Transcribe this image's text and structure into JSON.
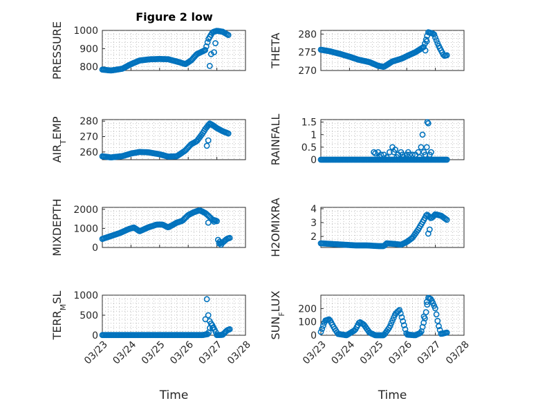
{
  "figure_title": "Figure 2 low",
  "marker_color": "#0072BD",
  "chart_data": [
    {
      "id": "pressure",
      "type": "scatter",
      "title": "Figure 2 low",
      "ylabel": "PRESSURE",
      "ylim": [
        780,
        1000
      ],
      "yticks": [
        "800",
        "900",
        "1000"
      ],
      "xlim": [
        0,
        5
      ],
      "series": [
        {
          "name": "PRESSURE",
          "keypoints": [
            [
              0,
              785
            ],
            [
              0.3,
              780
            ],
            [
              0.7,
              790
            ],
            [
              1.0,
              815
            ],
            [
              1.3,
              835
            ],
            [
              1.7,
              842
            ],
            [
              2.0,
              843
            ],
            [
              2.3,
              842
            ],
            [
              2.7,
              825
            ],
            [
              2.9,
              815
            ],
            [
              3.1,
              835
            ],
            [
              3.3,
              870
            ],
            [
              3.5,
              885
            ],
            [
              3.6,
              893
            ],
            [
              3.7,
              950
            ],
            [
              3.85,
              990
            ],
            [
              4.0,
              998
            ],
            [
              4.2,
              993
            ],
            [
              4.4,
              975
            ]
          ],
          "outliers": [
            [
              3.75,
              805
            ],
            [
              3.8,
              870
            ],
            [
              3.9,
              880
            ],
            [
              3.95,
              930
            ]
          ]
        }
      ]
    },
    {
      "id": "theta",
      "type": "scatter",
      "ylabel": "THETA",
      "ylim": [
        270,
        281
      ],
      "yticks": [
        "270",
        "275",
        "280"
      ],
      "xlim": [
        0,
        5
      ],
      "series": [
        {
          "name": "THETA",
          "keypoints": [
            [
              0,
              275.7
            ],
            [
              0.3,
              275.3
            ],
            [
              0.7,
              274.5
            ],
            [
              1.0,
              273.8
            ],
            [
              1.3,
              273.0
            ],
            [
              1.7,
              272.3
            ],
            [
              2.0,
              271.3
            ],
            [
              2.2,
              271.0
            ],
            [
              2.5,
              272.5
            ],
            [
              2.8,
              273.2
            ],
            [
              3.1,
              274.3
            ],
            [
              3.3,
              275.0
            ],
            [
              3.5,
              276.0
            ],
            [
              3.6,
              276.5
            ],
            [
              3.75,
              280.5
            ],
            [
              3.85,
              280.3
            ],
            [
              3.95,
              280.0
            ],
            [
              4.1,
              277.0
            ],
            [
              4.3,
              274.0
            ],
            [
              4.4,
              274.2
            ]
          ],
          "outliers": [
            [
              3.65,
              275.5
            ],
            [
              3.7,
              278.0
            ]
          ]
        }
      ]
    },
    {
      "id": "air_temp",
      "type": "scatter",
      "ylabel": "AIR",
      "ylabel_sub": "T",
      "ylabel_suffix": "EMP",
      "ylim": [
        255,
        281
      ],
      "yticks": [
        "260",
        "270",
        "280"
      ],
      "xlim": [
        0,
        5
      ],
      "series": [
        {
          "name": "AIR_TEMP",
          "keypoints": [
            [
              0,
              257.2
            ],
            [
              0.3,
              256.5
            ],
            [
              0.7,
              257.3
            ],
            [
              1.0,
              259.0
            ],
            [
              1.3,
              260.0
            ],
            [
              1.6,
              259.8
            ],
            [
              2.0,
              258.5
            ],
            [
              2.3,
              257.0
            ],
            [
              2.6,
              257.2
            ],
            [
              2.9,
              261.0
            ],
            [
              3.1,
              265.0
            ],
            [
              3.3,
              267.0
            ],
            [
              3.5,
              272.0
            ],
            [
              3.6,
              275.0
            ],
            [
              3.75,
              278.5
            ],
            [
              3.85,
              277.5
            ],
            [
              4.0,
              275.5
            ],
            [
              4.2,
              273.5
            ],
            [
              4.4,
              272.0
            ]
          ],
          "outliers": [
            [
              3.65,
              264.0
            ],
            [
              3.7,
              267.5
            ]
          ]
        }
      ]
    },
    {
      "id": "rainfall",
      "type": "scatter",
      "ylabel": "RAINFALL",
      "ylim": [
        0,
        1.6
      ],
      "yticks": [
        "0",
        "0.5",
        "1",
        "1.5"
      ],
      "xlim": [
        0,
        5
      ],
      "series": [
        {
          "name": "RAINFALL",
          "keypoints": [
            [
              0,
              0
            ],
            [
              1.8,
              0
            ],
            [
              4.4,
              0
            ]
          ],
          "outliers": [
            [
              1.85,
              0.3
            ],
            [
              1.9,
              0.25
            ],
            [
              2.0,
              0.3
            ],
            [
              2.05,
              0.1
            ],
            [
              2.1,
              0.2
            ],
            [
              2.2,
              0.2
            ],
            [
              2.3,
              0.1
            ],
            [
              2.4,
              0.3
            ],
            [
              2.5,
              0.5
            ],
            [
              2.55,
              0.3
            ],
            [
              2.6,
              0.4
            ],
            [
              2.65,
              0.1
            ],
            [
              2.7,
              0.2
            ],
            [
              2.8,
              0.3
            ],
            [
              2.85,
              0.2
            ],
            [
              2.9,
              0.1
            ],
            [
              3.0,
              0.2
            ],
            [
              3.05,
              0.3
            ],
            [
              3.1,
              0.2
            ],
            [
              3.2,
              0.2
            ],
            [
              3.3,
              0.2
            ],
            [
              3.4,
              0.3
            ],
            [
              3.45,
              0.1
            ],
            [
              3.5,
              0.5
            ],
            [
              3.55,
              1.0
            ],
            [
              3.6,
              0.3
            ],
            [
              3.65,
              0.2
            ],
            [
              3.7,
              0.5
            ],
            [
              3.72,
              1.5
            ],
            [
              3.75,
              1.45
            ],
            [
              3.8,
              0.2
            ],
            [
              3.85,
              0.3
            ]
          ]
        }
      ]
    },
    {
      "id": "mixdepth",
      "type": "scatter",
      "ylabel": "MIXDEPTH",
      "ylim": [
        0,
        2100
      ],
      "yticks": [
        "0",
        "1000",
        "2000"
      ],
      "xlim": [
        0,
        5
      ],
      "series": [
        {
          "name": "MIXDEPTH",
          "keypoints": [
            [
              0,
              450
            ],
            [
              0.3,
              600
            ],
            [
              0.6,
              750
            ],
            [
              0.9,
              950
            ],
            [
              1.1,
              1050
            ],
            [
              1.3,
              850
            ],
            [
              1.6,
              1050
            ],
            [
              1.9,
              1200
            ],
            [
              2.1,
              1200
            ],
            [
              2.3,
              1050
            ],
            [
              2.6,
              1300
            ],
            [
              2.8,
              1400
            ],
            [
              3.0,
              1700
            ],
            [
              3.2,
              1850
            ],
            [
              3.4,
              1950
            ],
            [
              3.6,
              1800
            ],
            [
              3.75,
              1600
            ],
            [
              3.85,
              1450
            ],
            [
              4.0,
              1400
            ],
            [
              4.05,
              200
            ],
            [
              4.2,
              250
            ],
            [
              4.35,
              450
            ],
            [
              4.45,
              500
            ]
          ],
          "outliers": [
            [
              3.7,
              1300
            ],
            [
              3.9,
              1350
            ],
            [
              4.1,
              300
            ],
            [
              4.15,
              150
            ]
          ]
        }
      ]
    },
    {
      "id": "h2omixra",
      "type": "scatter",
      "ylabel": "H2OMIXRA",
      "ylim": [
        1.2,
        4.1
      ],
      "yticks": [
        "2",
        "3",
        "4"
      ],
      "xlim": [
        0,
        5
      ],
      "series": [
        {
          "name": "H2OMIXRA",
          "keypoints": [
            [
              0,
              1.5
            ],
            [
              0.4,
              1.45
            ],
            [
              0.8,
              1.4
            ],
            [
              1.2,
              1.35
            ],
            [
              1.6,
              1.35
            ],
            [
              2.0,
              1.3
            ],
            [
              2.2,
              1.3
            ],
            [
              2.3,
              1.5
            ],
            [
              2.6,
              1.45
            ],
            [
              2.8,
              1.4
            ],
            [
              3.0,
              1.6
            ],
            [
              3.2,
              1.9
            ],
            [
              3.4,
              2.5
            ],
            [
              3.6,
              3.2
            ],
            [
              3.7,
              3.6
            ],
            [
              3.85,
              3.3
            ],
            [
              4.0,
              3.6
            ],
            [
              4.2,
              3.5
            ],
            [
              4.4,
              3.2
            ]
          ],
          "outliers": [
            [
              3.75,
              2.2
            ],
            [
              3.8,
              2.5
            ]
          ]
        }
      ]
    },
    {
      "id": "terr_msl",
      "type": "scatter",
      "ylabel": "TERR",
      "ylabel_sub": "M",
      "ylabel_suffix": "SL",
      "ylim": [
        0,
        1000
      ],
      "yticks": [
        "0",
        "500",
        "1000"
      ],
      "xlim": [
        0,
        5
      ],
      "xticks": [
        "03/23",
        "03/24",
        "03/25",
        "03/26",
        "03/27",
        "03/28"
      ],
      "xlabel": "Time",
      "series": [
        {
          "name": "TERR_MSL",
          "keypoints": [
            [
              0,
              5
            ],
            [
              3.5,
              5
            ],
            [
              3.7,
              30
            ],
            [
              3.8,
              300
            ],
            [
              3.95,
              100
            ],
            [
              4.0,
              5
            ],
            [
              4.2,
              10
            ],
            [
              4.35,
              120
            ],
            [
              4.45,
              150
            ]
          ],
          "outliers": [
            [
              3.6,
              400
            ],
            [
              3.65,
              900
            ],
            [
              3.7,
              500
            ],
            [
              3.75,
              350
            ],
            [
              3.85,
              180
            ]
          ]
        }
      ]
    },
    {
      "id": "sun_flux",
      "type": "scatter",
      "ylabel": "SUN",
      "ylabel_sub": "F",
      "ylabel_suffix": "LUX",
      "ylim": [
        0,
        300
      ],
      "yticks": [
        "0",
        "100",
        "200"
      ],
      "xlim": [
        0,
        5
      ],
      "xticks": [
        "03/23",
        "03/24",
        "03/25",
        "03/26",
        "03/27",
        "03/28"
      ],
      "xlabel": "Time",
      "series": [
        {
          "name": "SUN_FLUX",
          "keypoints": [
            [
              0,
              25
            ],
            [
              0.15,
              110
            ],
            [
              0.3,
              120
            ],
            [
              0.45,
              60
            ],
            [
              0.6,
              10
            ],
            [
              0.9,
              0
            ],
            [
              1.2,
              40
            ],
            [
              1.35,
              100
            ],
            [
              1.5,
              80
            ],
            [
              1.7,
              20
            ],
            [
              1.9,
              0
            ],
            [
              2.2,
              0
            ],
            [
              2.4,
              60
            ],
            [
              2.6,
              160
            ],
            [
              2.75,
              190
            ],
            [
              2.9,
              80
            ],
            [
              3.0,
              5
            ],
            [
              3.3,
              0
            ],
            [
              3.5,
              20
            ],
            [
              3.65,
              140
            ],
            [
              3.75,
              280
            ],
            [
              3.85,
              270
            ],
            [
              4.0,
              200
            ],
            [
              4.1,
              80
            ],
            [
              4.2,
              10
            ],
            [
              4.4,
              20
            ]
          ],
          "outliers": [
            [
              3.6,
              140
            ],
            [
              3.7,
              250
            ]
          ]
        }
      ]
    }
  ]
}
